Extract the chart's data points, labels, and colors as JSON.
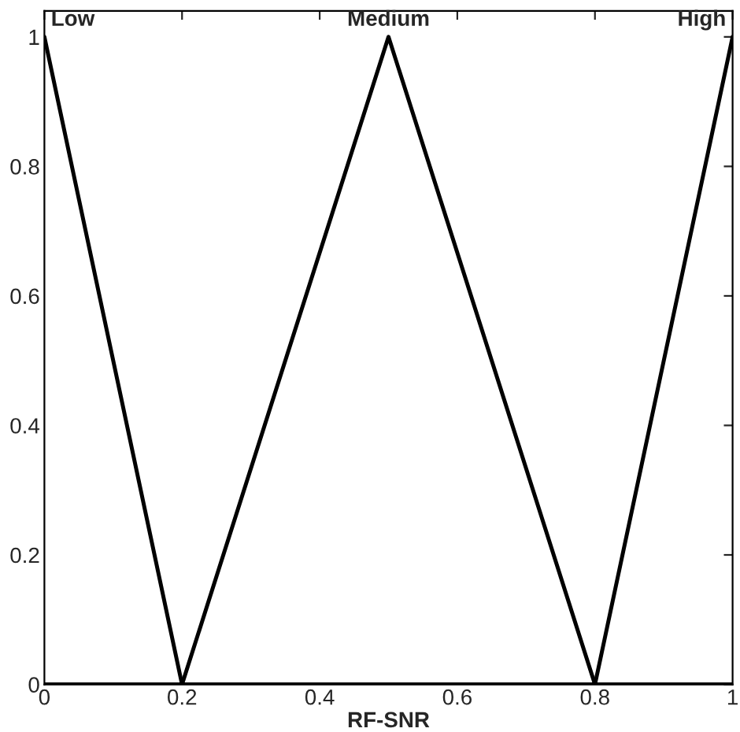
{
  "chart_data": {
    "type": "line",
    "xlabel": "RF-SNR",
    "series": [
      {
        "name": "Low",
        "color": "#000000",
        "x": [
          0,
          0.2,
          1
        ],
        "values": [
          1,
          0,
          0
        ]
      },
      {
        "name": "Medium",
        "color": "#000000",
        "x": [
          0,
          0.2,
          0.5,
          0.8,
          1
        ],
        "values": [
          0,
          0,
          1,
          0,
          0
        ]
      },
      {
        "name": "High",
        "color": "#000000",
        "x": [
          0,
          0.8,
          1
        ],
        "values": [
          0,
          0,
          1
        ]
      }
    ],
    "xlim": [
      0,
      1
    ],
    "ylim": [
      0,
      1.04
    ],
    "xticks": [
      0,
      0.2,
      0.4,
      0.6,
      0.8,
      1
    ],
    "yticks": [
      0,
      0.2,
      0.4,
      0.6,
      0.8,
      1
    ],
    "grid": false,
    "legend": false,
    "marker": "none",
    "line_style": "solid"
  }
}
